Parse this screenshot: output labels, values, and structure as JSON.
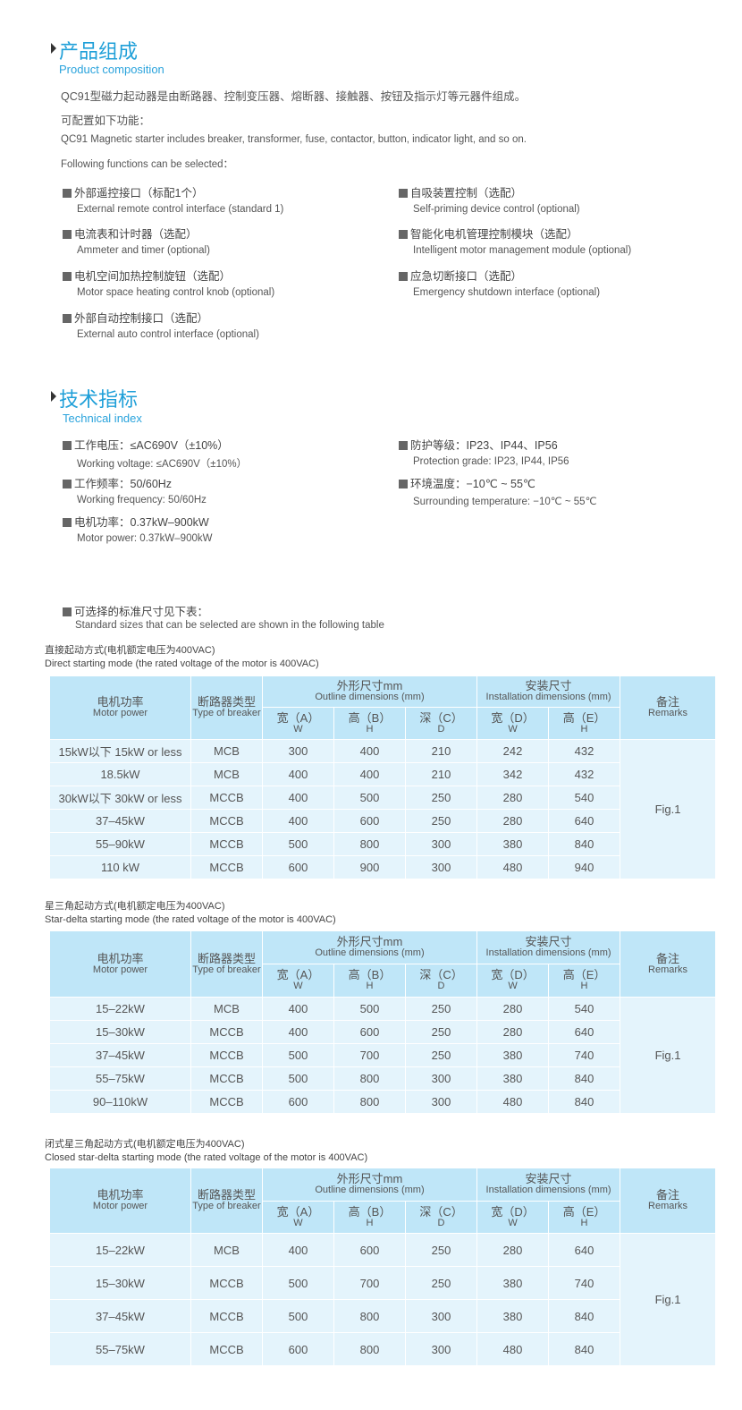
{
  "composition": {
    "title": "产品组成",
    "subtitle": "Product composition",
    "para_zh": "QC91型磁力起动器是由断路器、控制变压器、熔断器、接触器、按钮及指示灯等元器件组成。",
    "config_zh": "可配置如下功能：",
    "para_en": "QC91 Magnetic starter includes breaker, transformer, fuse, contactor, button, indicator light, and so on.",
    "config_en": "Following functions can be selected：",
    "left": [
      {
        "zh": "外部遥控接口（标配1个）",
        "en": "External remote control interface (standard 1)"
      },
      {
        "zh": "电流表和计时器（选配）",
        "en": "Ammeter and timer (optional)"
      },
      {
        "zh": "电机空间加热控制旋钮（选配）",
        "en": "Motor space heating control knob (optional)"
      },
      {
        "zh": "外部自动控制接口（选配）",
        "en": "External auto control interface (optional)"
      }
    ],
    "right": [
      {
        "zh": "自吸装置控制（选配）",
        "en": "Self-priming device control (optional)"
      },
      {
        "zh": "智能化电机管理控制模块（选配）",
        "en": "Intelligent motor management module (optional)"
      },
      {
        "zh": "应急切断接口（选配）",
        "en": "Emergency shutdown interface (optional)"
      }
    ]
  },
  "technical": {
    "title": "技术指标",
    "subtitle": "Technical index",
    "left": [
      {
        "zh": "工作电压：≤AC690V（±10%）",
        "en": "Working voltage: ≤AC690V（±10%）"
      },
      {
        "zh": "工作频率：50/60Hz",
        "en": "Working frequency: 50/60Hz"
      },
      {
        "zh": "电机功率：0.37kW–900kW",
        "en": "Motor power: 0.37kW–900kW"
      }
    ],
    "right": [
      {
        "zh": "防护等级：IP23、IP44、IP56",
        "en": "Protection grade: IP23, IP44, IP56"
      },
      {
        "zh": "环境温度：−10℃ ~ 55℃",
        "en": "Surrounding temperature: −10℃ ~ 55℃"
      }
    ],
    "note_zh": "可选择的标准尺寸见下表：",
    "note_en": "Standard sizes that can be selected are shown in the following table"
  },
  "header": {
    "motor_zh": "电机功率",
    "motor_en": "Motor power",
    "breaker_zh": "断路器类型",
    "breaker_en": "Type of breaker",
    "outline_zh": "外形尺寸mm",
    "outline_en": "Outline dimensions (mm)",
    "install_zh": "安装尺寸",
    "install_en": "Installation dimensions (mm)",
    "remarks_zh": "备注",
    "remarks_en": "Remarks",
    "cols": [
      {
        "zh": "宽（A）",
        "en": "W"
      },
      {
        "zh": "高（B）",
        "en": "H"
      },
      {
        "zh": "深（C）",
        "en": "D"
      },
      {
        "zh": "宽（D）",
        "en": "W"
      },
      {
        "zh": "高（E）",
        "en": "H"
      }
    ]
  },
  "tables": [
    {
      "caption_zh": "直接起动方式(电机额定电压为400VAC)",
      "caption_en": "Direct starting mode (the rated voltage of the motor is 400VAC)",
      "remark": "Fig.1",
      "rows": [
        [
          "15kW以下 15kW or less",
          "MCB",
          "300",
          "400",
          "210",
          "242",
          "432"
        ],
        [
          "18.5kW",
          "MCB",
          "400",
          "400",
          "210",
          "342",
          "432"
        ],
        [
          "30kW以下 30kW or less",
          "MCCB",
          "400",
          "500",
          "250",
          "280",
          "540"
        ],
        [
          "37–45kW",
          "MCCB",
          "400",
          "600",
          "250",
          "280",
          "640"
        ],
        [
          "55–90kW",
          "MCCB",
          "500",
          "800",
          "300",
          "380",
          "840"
        ],
        [
          "110 kW",
          "MCCB",
          "600",
          "900",
          "300",
          "480",
          "940"
        ]
      ]
    },
    {
      "caption_zh": "星三角起动方式(电机额定电压为400VAC)",
      "caption_en": "Star-delta starting mode (the rated voltage of the motor is 400VAC)",
      "remark": "Fig.1",
      "rows": [
        [
          "15–22kW",
          "MCB",
          "400",
          "500",
          "250",
          "280",
          "540"
        ],
        [
          "15–30kW",
          "MCCB",
          "400",
          "600",
          "250",
          "280",
          "640"
        ],
        [
          "37–45kW",
          "MCCB",
          "500",
          "700",
          "250",
          "380",
          "740"
        ],
        [
          "55–75kW",
          "MCCB",
          "500",
          "800",
          "300",
          "380",
          "840"
        ],
        [
          "90–110kW",
          "MCCB",
          "600",
          "800",
          "300",
          "480",
          "840"
        ]
      ]
    },
    {
      "caption_zh": "闭式星三角起动方式(电机额定电压为400VAC)",
      "caption_en": "Closed star-delta starting mode (the rated voltage of the motor is 400VAC)",
      "remark": "Fig.1",
      "rows": [
        [
          "15–22kW",
          "MCB",
          "400",
          "600",
          "250",
          "280",
          "640"
        ],
        [
          "15–30kW",
          "MCCB",
          "500",
          "700",
          "250",
          "380",
          "740"
        ],
        [
          "37–45kW",
          "MCCB",
          "500",
          "800",
          "300",
          "380",
          "840"
        ],
        [
          "55–75kW",
          "MCCB",
          "600",
          "800",
          "300",
          "480",
          "840"
        ]
      ]
    }
  ]
}
